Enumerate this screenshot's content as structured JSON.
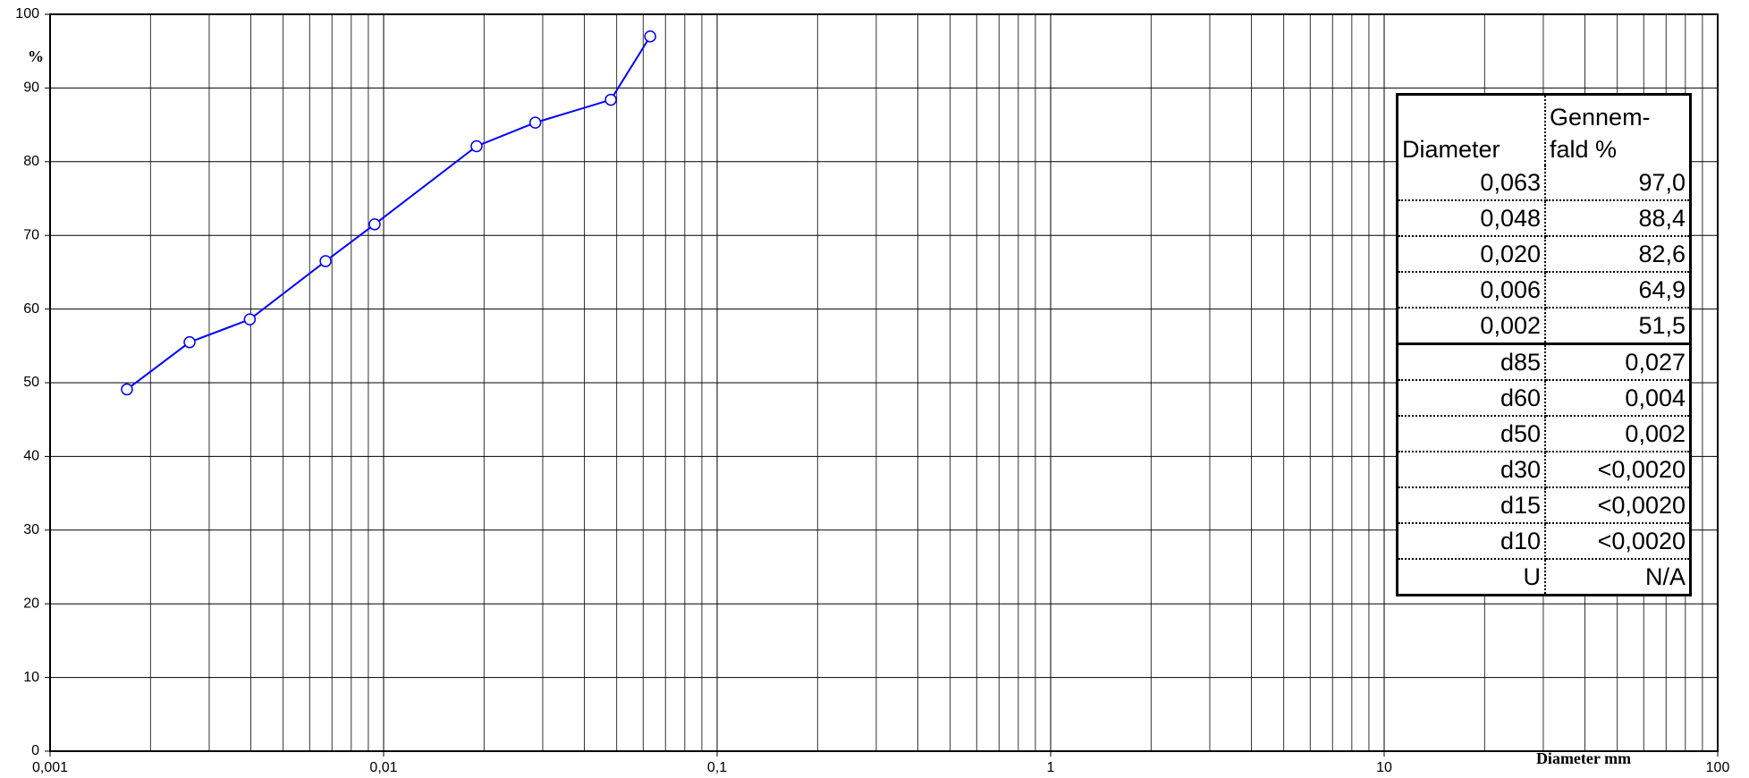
{
  "chart_data": {
    "type": "line",
    "x_label": "Diameter mm",
    "y_label": "%",
    "x_scale": "log",
    "grid": true,
    "color": "#0000ff",
    "x": [
      0.0017,
      0.00262,
      0.00397,
      0.0067,
      0.0094,
      0.019,
      0.0285,
      0.048,
      0.063
    ],
    "values": [
      49.1,
      55.5,
      58.6,
      66.5,
      71.5,
      82.1,
      85.3,
      88.4,
      97.0
    ],
    "xlim": [
      0.001,
      100
    ],
    "ylim": [
      0,
      100
    ],
    "xticks": [
      {
        "value": 0.001,
        "label": "0,001"
      },
      {
        "value": 0.01,
        "label": "0,01"
      },
      {
        "value": 0.1,
        "label": "0,1"
      },
      1,
      10,
      100
    ],
    "yticks": [
      0,
      10,
      20,
      30,
      40,
      50,
      60,
      70,
      80,
      90,
      100
    ],
    "table": {
      "header": [
        "Diameter",
        "Gennem-fald %"
      ],
      "rows": [
        [
          "0,063",
          "97,0"
        ],
        [
          "0,048",
          "88,4"
        ],
        [
          "0,020",
          "82,6"
        ],
        [
          "0,006",
          "64,9"
        ],
        [
          "0,002",
          "51,5"
        ],
        [
          "d85",
          "0,027"
        ],
        [
          "d60",
          "0,004"
        ],
        [
          "d50",
          "0,002"
        ],
        [
          "d30",
          "<0,0020"
        ],
        [
          "d15",
          "<0,0020"
        ],
        [
          "d10",
          "<0,0020"
        ],
        [
          "U",
          "N/A"
        ]
      ]
    }
  }
}
